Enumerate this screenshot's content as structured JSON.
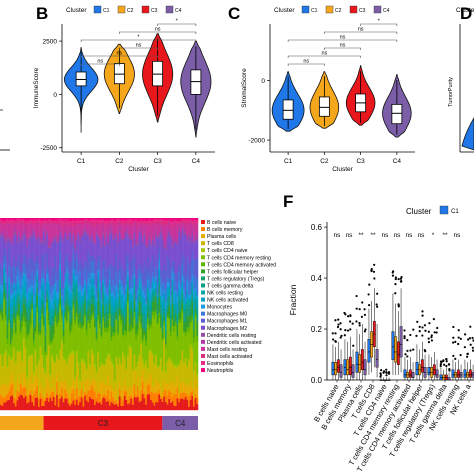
{
  "panel_letters": {
    "b": "B",
    "c": "C",
    "d": "D",
    "f": "F"
  },
  "colors": {
    "C1": "#1f77e8",
    "C2": "#f5a71b",
    "C3": "#e8171b",
    "C4": "#7b5ea7",
    "box": "#ffffff",
    "line": "#000000"
  },
  "chart_data": [
    {
      "id": "B",
      "type": "violin",
      "legend_title": "Cluster",
      "legend": [
        "C1",
        "C2",
        "C3",
        "C4"
      ],
      "legend_position": "top",
      "xlabel": "Cluster",
      "ylabel": "ImmuneScore",
      "categories": [
        "C1",
        "C2",
        "C3",
        "C4"
      ],
      "ylim": [
        -2700,
        3300
      ],
      "yticks": [
        2500,
        0,
        -2500
      ],
      "ytick_labels": [
        "2500",
        "0",
        "-2500"
      ],
      "violins": [
        {
          "min": -1800,
          "q1": 400,
          "median": 700,
          "q3": 1050,
          "max": 2200,
          "spread": 1.0
        },
        {
          "min": -900,
          "q1": 500,
          "median": 950,
          "q3": 1450,
          "max": 2350,
          "spread": 0.9
        },
        {
          "min": -1300,
          "q1": 400,
          "median": 950,
          "q3": 1550,
          "max": 2850,
          "spread": 0.9
        },
        {
          "min": -2000,
          "q1": 0,
          "median": 600,
          "q3": 1150,
          "max": 2500,
          "spread": 0.9
        }
      ],
      "comparisons": [
        {
          "from": 1,
          "to": 2,
          "label": "ns"
        },
        {
          "from": 1,
          "to": 3,
          "label": "ns"
        },
        {
          "from": 2,
          "to": 3,
          "label": "ns"
        },
        {
          "from": 1,
          "to": 4,
          "label": "*"
        },
        {
          "from": 2,
          "to": 4,
          "label": "ns"
        },
        {
          "from": 3,
          "to": 4,
          "label": "*"
        }
      ]
    },
    {
      "id": "C",
      "type": "violin",
      "legend_title": "Cluster",
      "legend": [
        "C1",
        "C2",
        "C3",
        "C4"
      ],
      "legend_position": "top",
      "xlabel": "Cluster",
      "ylabel": "StromalScore",
      "categories": [
        "C1",
        "C2",
        "C3",
        "C4"
      ],
      "ylim": [
        -2400,
        1900
      ],
      "yticks": [
        0,
        -2000
      ],
      "ytick_labels": [
        "0",
        "-2000"
      ],
      "violins": [
        {
          "min": -1700,
          "q1": -1300,
          "median": -1000,
          "q3": -650,
          "max": 300,
          "spread": 1.0
        },
        {
          "min": -1600,
          "q1": -1200,
          "median": -900,
          "q3": -550,
          "max": 300,
          "spread": 0.9
        },
        {
          "min": -1500,
          "q1": -1050,
          "median": -750,
          "q3": -450,
          "max": 500,
          "spread": 0.9
        },
        {
          "min": -1900,
          "q1": -1450,
          "median": -1100,
          "q3": -800,
          "max": 200,
          "spread": 0.9
        }
      ],
      "comparisons": [
        {
          "from": 1,
          "to": 2,
          "label": "ns"
        },
        {
          "from": 1,
          "to": 3,
          "label": "ns"
        },
        {
          "from": 2,
          "to": 3,
          "label": "ns"
        },
        {
          "from": 1,
          "to": 4,
          "label": "ns"
        },
        {
          "from": 2,
          "to": 4,
          "label": "ns"
        },
        {
          "from": 3,
          "to": 4,
          "label": "*"
        }
      ]
    },
    {
      "id": "D",
      "type": "violin",
      "legend_title": "Cluster",
      "legend": [
        "C1"
      ],
      "ylabel": "TumorPurity"
    },
    {
      "id": "E",
      "type": "bar",
      "stacked": true,
      "legend": [
        {
          "name": "B cells naive",
          "color": "#e41a1c"
        },
        {
          "name": "B cells memory",
          "color": "#ff7f00"
        },
        {
          "name": "Plasma cells",
          "color": "#e6ab02"
        },
        {
          "name": "T cells CD8",
          "color": "#c7b900"
        },
        {
          "name": "T cells CD4 naive",
          "color": "#a6c700"
        },
        {
          "name": "T cells CD4 memory resting",
          "color": "#7fbf00"
        },
        {
          "name": "T cells CD4 memory activated",
          "color": "#5cb300"
        },
        {
          "name": "T cells follicular helper",
          "color": "#33a02c"
        },
        {
          "name": "T cells regulatory (Tregs)",
          "color": "#1b9e77"
        },
        {
          "name": "T cells gamma delta",
          "color": "#00a087"
        },
        {
          "name": "NK cells resting",
          "color": "#00a6a6"
        },
        {
          "name": "NK cells activated",
          "color": "#00a0c8"
        },
        {
          "name": "Monocytes",
          "color": "#1f9ae0"
        },
        {
          "name": "Macrophages M0",
          "color": "#3c78d8"
        },
        {
          "name": "Macrophages M1",
          "color": "#5a5fd1"
        },
        {
          "name": "Macrophages M2",
          "color": "#7a4fcf"
        },
        {
          "name": "Dendritic cells resting",
          "color": "#984ea3"
        },
        {
          "name": "Dendritic cells activated",
          "color": "#b23aa8"
        },
        {
          "name": "Mast cells resting",
          "color": "#c9339a"
        },
        {
          "name": "Mast cells activated",
          "color": "#d62d7e"
        },
        {
          "name": "Eosinophils",
          "color": "#e7298a"
        },
        {
          "name": "Neutrophils",
          "color": "#f0027f"
        }
      ],
      "group_bar": [
        {
          "label": "",
          "color": "#f5a71b",
          "fraction": 0.22
        },
        {
          "label": "C3",
          "color": "#e8171b",
          "fraction": 0.6
        },
        {
          "label": "C4",
          "color": "#7b5ea7",
          "fraction": 0.18
        }
      ],
      "mean_composition": [
        0.05,
        0.04,
        0.05,
        0.12,
        0.01,
        0.16,
        0.02,
        0.05,
        0.04,
        0.01,
        0.03,
        0.04,
        0.03,
        0.05,
        0.07,
        0.12,
        0.01,
        0.02,
        0.05,
        0.01,
        0.01,
        0.01
      ]
    },
    {
      "id": "F",
      "type": "box",
      "legend_title": "Cluster",
      "legend": [
        "C1"
      ],
      "ylabel": "Fraction",
      "ylim": [
        0,
        0.62
      ],
      "yticks": [
        0.0,
        0.2,
        0.4,
        0.6
      ],
      "ytick_labels": [
        "0.0",
        "0.2",
        "0.4",
        "0.6"
      ],
      "categories": [
        "B cells naive",
        "B cells memory",
        "Plasma cells",
        "T cells CD8",
        "T cells CD4 naive",
        "T cells CD4 memory resting",
        "T cells CD4 memory activated",
        "T cells follicular helper",
        "T cells regulatory (Tregs)",
        "T cells gamma delta",
        "NK cells resting",
        "NK cells activated"
      ],
      "tick_labels": [
        "B cells naive",
        "B cells memory",
        "Plasma cells",
        "T cells CD8",
        "T cells CD4 naive",
        "T cells CD4 memory resting",
        "T cells CD4 memory activated",
        "T cells follicular helper",
        "T cells regulatory (Tregs)",
        "T cells gamma delta",
        "NK cells resting",
        "NK cells a"
      ],
      "significance": [
        "ns",
        "ns",
        "**",
        "**",
        "ns",
        "ns",
        "ns",
        "ns",
        "*",
        "**",
        "ns",
        ""
      ],
      "series": [
        {
          "name": "C1",
          "boxes": [
            [
              0.0,
              0.02,
              0.04,
              0.07,
              0.14
            ],
            [
              0.0,
              0.02,
              0.05,
              0.08,
              0.16
            ],
            [
              0.0,
              0.03,
              0.06,
              0.11,
              0.2
            ],
            [
              0.02,
              0.07,
              0.11,
              0.16,
              0.28
            ],
            [
              0.0,
              0.0,
              0.0,
              0.0,
              0.01
            ],
            [
              0.02,
              0.08,
              0.13,
              0.19,
              0.34
            ],
            [
              0.0,
              0.01,
              0.02,
              0.04,
              0.09
            ],
            [
              0.0,
              0.02,
              0.04,
              0.07,
              0.14
            ],
            [
              0.0,
              0.02,
              0.03,
              0.05,
              0.1
            ],
            [
              0.0,
              0.0,
              0.01,
              0.02,
              0.05
            ],
            [
              0.0,
              0.01,
              0.02,
              0.04,
              0.08
            ],
            [
              0.0,
              0.01,
              0.02,
              0.04,
              0.08
            ]
          ]
        },
        {
          "name": "C2",
          "boxes": [
            [
              0.0,
              0.02,
              0.04,
              0.07,
              0.13
            ],
            [
              0.0,
              0.02,
              0.04,
              0.08,
              0.15
            ],
            [
              0.0,
              0.03,
              0.06,
              0.1,
              0.18
            ],
            [
              0.03,
              0.09,
              0.14,
              0.19,
              0.31
            ],
            [
              0.0,
              0.0,
              0.0,
              0.0,
              0.01
            ],
            [
              0.02,
              0.07,
              0.11,
              0.17,
              0.3
            ],
            [
              0.0,
              0.01,
              0.02,
              0.03,
              0.08
            ],
            [
              0.0,
              0.02,
              0.04,
              0.06,
              0.12
            ],
            [
              0.0,
              0.01,
              0.03,
              0.05,
              0.09
            ],
            [
              0.0,
              0.0,
              0.01,
              0.02,
              0.04
            ],
            [
              0.0,
              0.01,
              0.02,
              0.03,
              0.07
            ],
            [
              0.0,
              0.01,
              0.02,
              0.03,
              0.07
            ]
          ]
        },
        {
          "name": "C3",
          "boxes": [
            [
              0.0,
              0.03,
              0.05,
              0.08,
              0.15
            ],
            [
              0.0,
              0.02,
              0.05,
              0.09,
              0.17
            ],
            [
              0.0,
              0.04,
              0.07,
              0.12,
              0.22
            ],
            [
              0.05,
              0.13,
              0.18,
              0.23,
              0.36
            ],
            [
              0.0,
              0.0,
              0.0,
              0.0,
              0.01
            ],
            [
              0.02,
              0.06,
              0.1,
              0.15,
              0.27
            ],
            [
              0.0,
              0.01,
              0.02,
              0.04,
              0.09
            ],
            [
              0.0,
              0.03,
              0.05,
              0.08,
              0.15
            ],
            [
              0.0,
              0.02,
              0.04,
              0.06,
              0.11
            ],
            [
              0.0,
              0.0,
              0.01,
              0.02,
              0.05
            ],
            [
              0.0,
              0.01,
              0.02,
              0.04,
              0.08
            ],
            [
              0.0,
              0.01,
              0.02,
              0.04,
              0.08
            ]
          ]
        },
        {
          "name": "C4",
          "boxes": [
            [
              0.0,
              0.01,
              0.03,
              0.06,
              0.12
            ],
            [
              0.0,
              0.01,
              0.03,
              0.06,
              0.12
            ],
            [
              0.0,
              0.02,
              0.04,
              0.08,
              0.15
            ],
            [
              0.01,
              0.05,
              0.08,
              0.12,
              0.22
            ],
            [
              0.0,
              0.0,
              0.0,
              0.0,
              0.01
            ],
            [
              0.03,
              0.09,
              0.14,
              0.21,
              0.36
            ],
            [
              0.0,
              0.01,
              0.01,
              0.03,
              0.07
            ],
            [
              0.0,
              0.01,
              0.03,
              0.05,
              0.1
            ],
            [
              0.0,
              0.01,
              0.02,
              0.04,
              0.08
            ],
            [
              0.0,
              0.0,
              0.0,
              0.01,
              0.03
            ],
            [
              0.0,
              0.01,
              0.02,
              0.03,
              0.06
            ],
            [
              0.0,
              0.01,
              0.02,
              0.03,
              0.06
            ]
          ]
        }
      ]
    }
  ]
}
